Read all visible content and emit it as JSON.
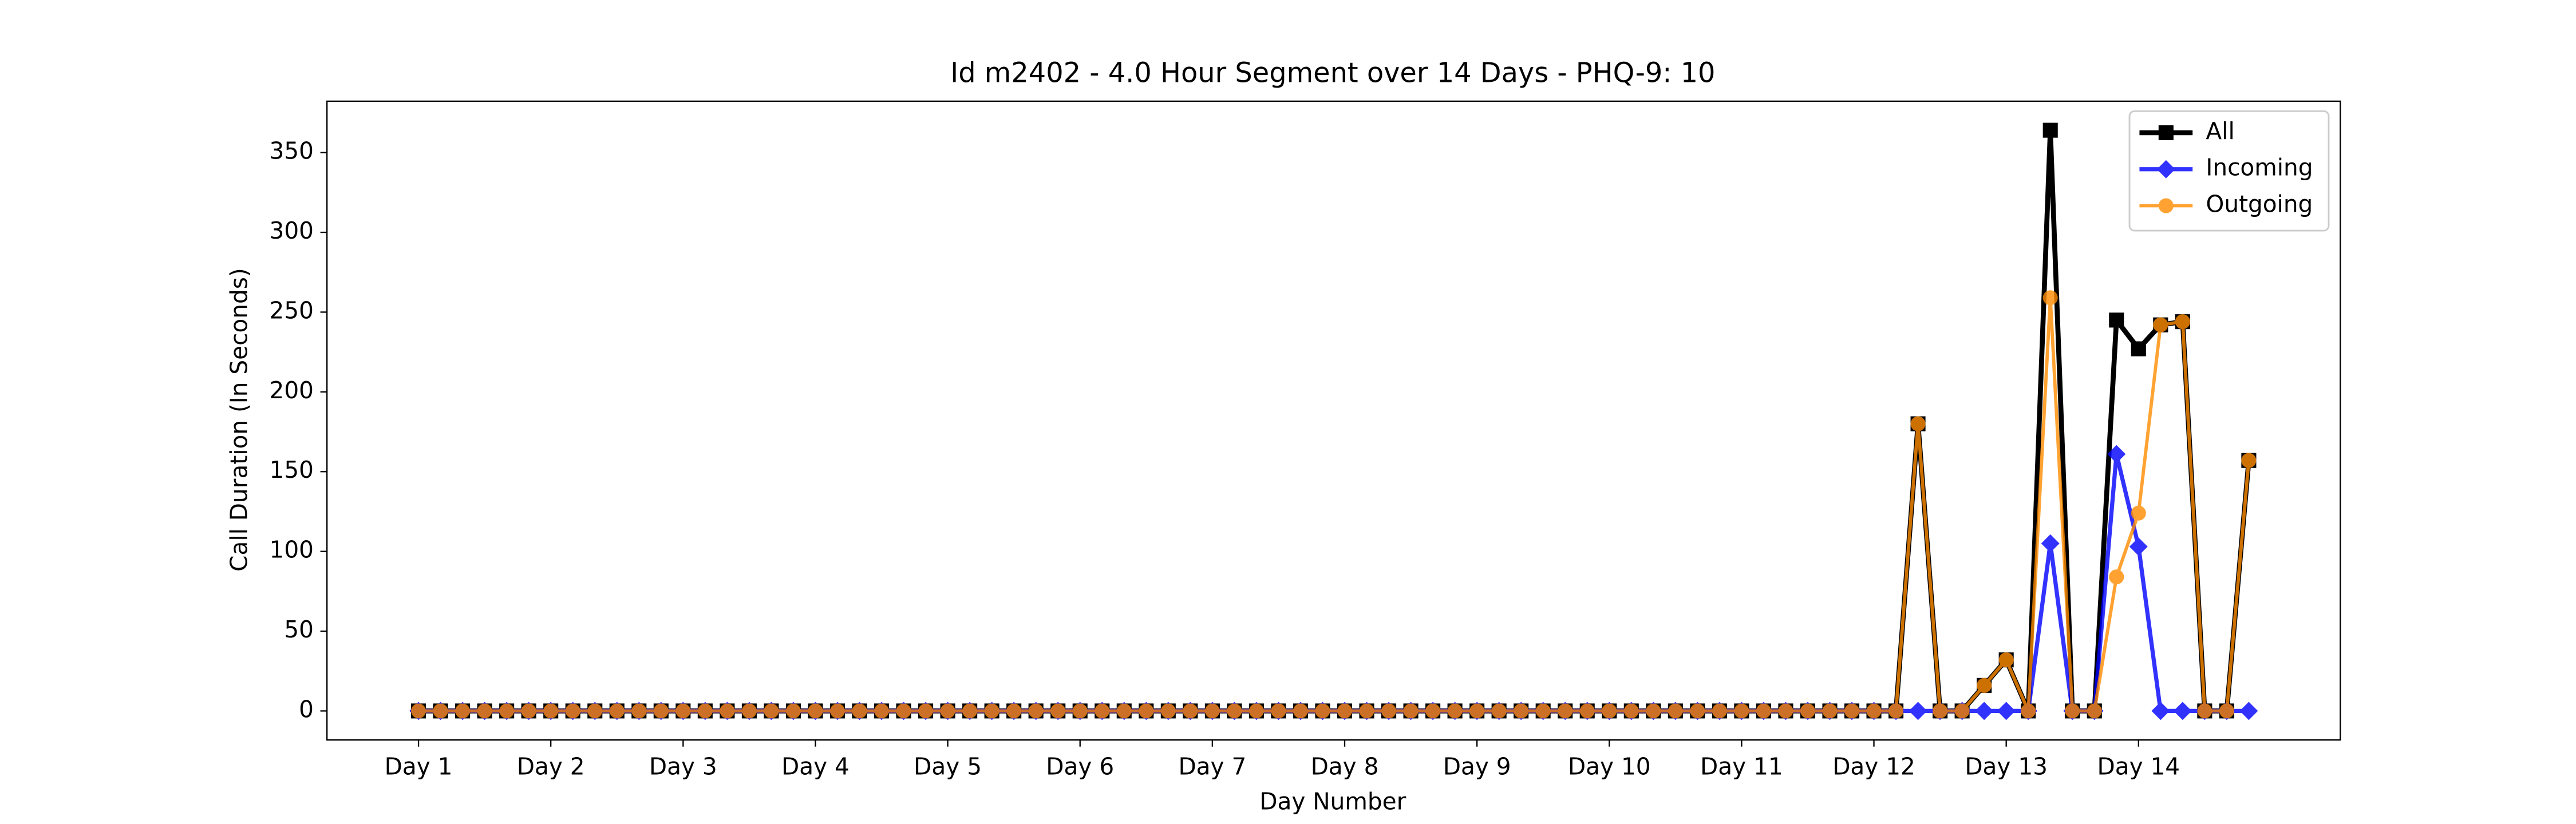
{
  "chart_data": {
    "type": "line",
    "title": "Id m2402 - 4.0 Hour Segment over 14 Days - PHQ-9: 10",
    "xlabel": "Day Number",
    "ylabel": "Call Duration (In Seconds)",
    "x": [
      0,
      1,
      2,
      3,
      4,
      5,
      6,
      7,
      8,
      9,
      10,
      11,
      12,
      13,
      14,
      15,
      16,
      17,
      18,
      19,
      20,
      21,
      22,
      23,
      24,
      25,
      26,
      27,
      28,
      29,
      30,
      31,
      32,
      33,
      34,
      35,
      36,
      37,
      38,
      39,
      40,
      41,
      42,
      43,
      44,
      45,
      46,
      47,
      48,
      49,
      50,
      51,
      52,
      53,
      54,
      55,
      56,
      57,
      58,
      59,
      60,
      61,
      62,
      63,
      64,
      65,
      66,
      67,
      68,
      69,
      70,
      71,
      72,
      73,
      74,
      75,
      76,
      77,
      78,
      79,
      80,
      81,
      82,
      83
    ],
    "series": [
      {
        "name": "All",
        "color": "#000000",
        "marker": "square",
        "linewidth": 3,
        "values": [
          0,
          0,
          0,
          0,
          0,
          0,
          0,
          0,
          0,
          0,
          0,
          0,
          0,
          0,
          0,
          0,
          0,
          0,
          0,
          0,
          0,
          0,
          0,
          0,
          0,
          0,
          0,
          0,
          0,
          0,
          0,
          0,
          0,
          0,
          0,
          0,
          0,
          0,
          0,
          0,
          0,
          0,
          0,
          0,
          0,
          0,
          0,
          0,
          0,
          0,
          0,
          0,
          0,
          0,
          0,
          0,
          0,
          0,
          0,
          0,
          0,
          0,
          0,
          0,
          0,
          0,
          0,
          0,
          180,
          0,
          0,
          16,
          32,
          0,
          364,
          0,
          0,
          245,
          227,
          242,
          244,
          0,
          0,
          157
        ]
      },
      {
        "name": "Incoming",
        "color": "#0000ff",
        "marker": "diamond",
        "linewidth": 2.5,
        "values": [
          0,
          0,
          0,
          0,
          0,
          0,
          0,
          0,
          0,
          0,
          0,
          0,
          0,
          0,
          0,
          0,
          0,
          0,
          0,
          0,
          0,
          0,
          0,
          0,
          0,
          0,
          0,
          0,
          0,
          0,
          0,
          0,
          0,
          0,
          0,
          0,
          0,
          0,
          0,
          0,
          0,
          0,
          0,
          0,
          0,
          0,
          0,
          0,
          0,
          0,
          0,
          0,
          0,
          0,
          0,
          0,
          0,
          0,
          0,
          0,
          0,
          0,
          0,
          0,
          0,
          0,
          0,
          0,
          0,
          0,
          0,
          0,
          0,
          0,
          105,
          0,
          0,
          161,
          103,
          0,
          0,
          0,
          0,
          0
        ]
      },
      {
        "name": "Outgoing",
        "color": "#ff8c00",
        "marker": "circle",
        "linewidth": 2,
        "values": [
          0,
          0,
          0,
          0,
          0,
          0,
          0,
          0,
          0,
          0,
          0,
          0,
          0,
          0,
          0,
          0,
          0,
          0,
          0,
          0,
          0,
          0,
          0,
          0,
          0,
          0,
          0,
          0,
          0,
          0,
          0,
          0,
          0,
          0,
          0,
          0,
          0,
          0,
          0,
          0,
          0,
          0,
          0,
          0,
          0,
          0,
          0,
          0,
          0,
          0,
          0,
          0,
          0,
          0,
          0,
          0,
          0,
          0,
          0,
          0,
          0,
          0,
          0,
          0,
          0,
          0,
          0,
          0,
          180,
          0,
          0,
          16,
          32,
          0,
          259,
          0,
          0,
          84,
          124,
          242,
          244,
          0,
          0,
          157
        ]
      }
    ],
    "xlim": [
      -4.15,
      87.15
    ],
    "xticks": [
      {
        "value": 0,
        "label": "Day 1"
      },
      {
        "value": 6,
        "label": "Day 2"
      },
      {
        "value": 12,
        "label": "Day 3"
      },
      {
        "value": 18,
        "label": "Day 4"
      },
      {
        "value": 24,
        "label": "Day 5"
      },
      {
        "value": 30,
        "label": "Day 6"
      },
      {
        "value": 36,
        "label": "Day 7"
      },
      {
        "value": 42,
        "label": "Day 8"
      },
      {
        "value": 48,
        "label": "Day 9"
      },
      {
        "value": 54,
        "label": "Day 10"
      },
      {
        "value": 60,
        "label": "Day 11"
      },
      {
        "value": 66,
        "label": "Day 12"
      },
      {
        "value": 72,
        "label": "Day 13"
      },
      {
        "value": 78,
        "label": "Day 14"
      }
    ],
    "ylim": [
      -18.2,
      382.2
    ],
    "yticks": [
      0,
      50,
      100,
      150,
      200,
      250,
      300,
      350
    ],
    "legend": "upper right"
  }
}
